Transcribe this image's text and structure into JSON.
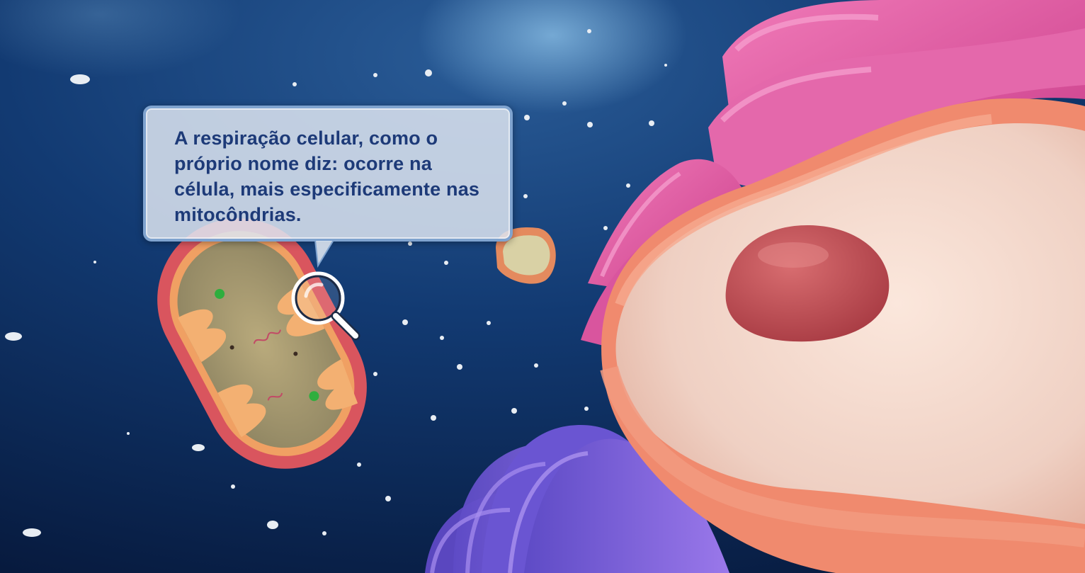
{
  "tooltip": {
    "text": "A respiração celular, como o próprio nome diz: ocorre na célula, mais especificamente nas mitocôndrias."
  },
  "icons": {
    "magnifier": "magnifier-icon"
  },
  "colors": {
    "background": "#0c2450",
    "tooltip_text": "#1d3a78",
    "tooltip_border": "#7fa3cf",
    "mitochondrion": "#d9555e",
    "nucleolus": "#b84a4f",
    "endoplasmic_reticulum": "#e2579e",
    "golgi": "#7d5fd6"
  }
}
